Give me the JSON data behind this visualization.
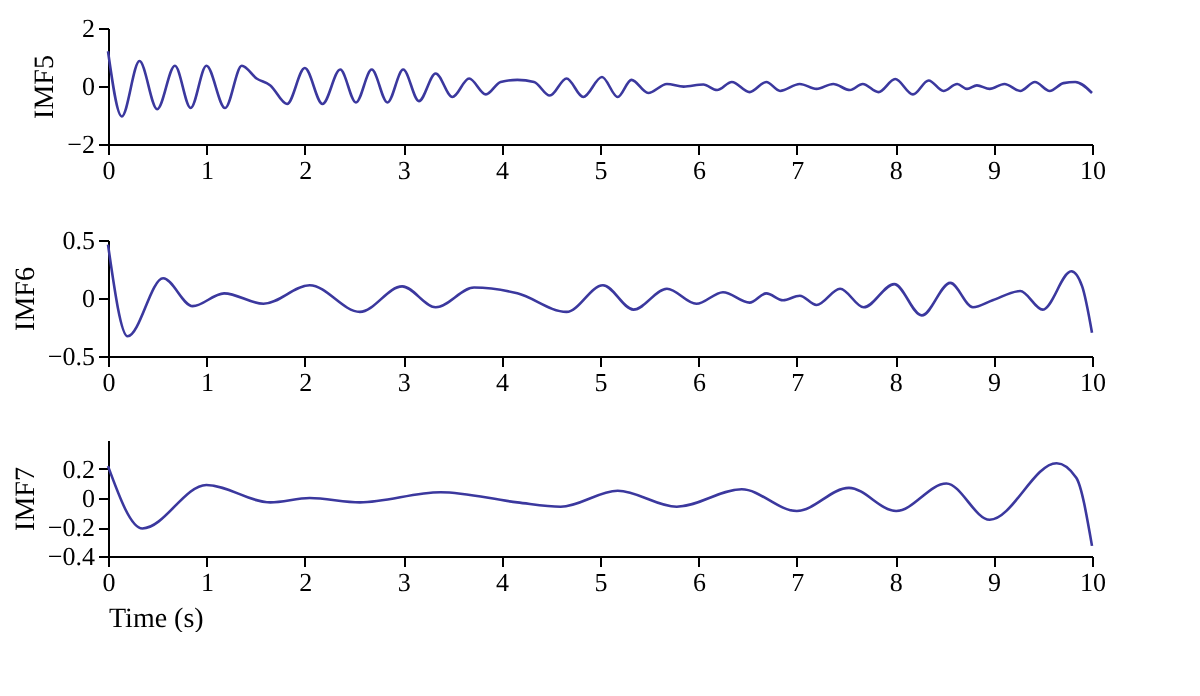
{
  "chart_data": [
    {
      "type": "line",
      "ylabel": "IMF5",
      "xlim": [
        0,
        10
      ],
      "xticks": [
        0,
        1,
        2,
        3,
        4,
        5,
        6,
        7,
        8,
        9,
        10
      ],
      "ylim": [
        -2,
        2
      ],
      "yticks": [
        -2,
        0,
        2
      ],
      "grid": false,
      "x": [
        0,
        0.14,
        0.32,
        0.5,
        0.68,
        0.84,
        1.0,
        1.19,
        1.36,
        1.51,
        1.65,
        1.82,
        2.0,
        2.18,
        2.36,
        2.52,
        2.68,
        2.84,
        3.0,
        3.16,
        3.33,
        3.5,
        3.67,
        3.84,
        3.99,
        4.16,
        4.33,
        4.49,
        4.66,
        4.83,
        5.02,
        5.18,
        5.32,
        5.49,
        5.68,
        5.85,
        6.05,
        6.19,
        6.34,
        6.52,
        6.69,
        6.83,
        7.03,
        7.2,
        7.37,
        7.54,
        7.67,
        7.83,
        8.0,
        8.18,
        8.34,
        8.49,
        8.63,
        8.73,
        8.83,
        8.96,
        9.11,
        9.27,
        9.42,
        9.57,
        9.71,
        9.83,
        10.0
      ],
      "series": [
        {
          "color": "#3b389e",
          "values": [
            1.2,
            -1.05,
            0.86,
            -0.8,
            0.7,
            -0.76,
            0.7,
            -0.76,
            0.7,
            0.26,
            0.02,
            -0.62,
            0.62,
            -0.62,
            0.57,
            -0.57,
            0.57,
            -0.57,
            0.57,
            -0.52,
            0.43,
            -0.38,
            0.26,
            -0.29,
            0.14,
            0.21,
            0.14,
            -0.33,
            0.26,
            -0.38,
            0.31,
            -0.38,
            0.21,
            -0.24,
            0.07,
            -0.02,
            0.05,
            -0.14,
            0.14,
            -0.21,
            0.14,
            -0.17,
            0.07,
            -0.1,
            0.07,
            -0.14,
            0.07,
            -0.21,
            0.24,
            -0.29,
            0.19,
            -0.17,
            0.07,
            -0.1,
            0.02,
            -0.1,
            0.07,
            -0.17,
            0.14,
            -0.17,
            0.1,
            0.14,
            -0.24
          ]
        }
      ]
    },
    {
      "type": "line",
      "ylabel": "IMF6",
      "xlim": [
        0,
        10
      ],
      "xticks": [
        0,
        1,
        2,
        3,
        4,
        5,
        6,
        7,
        8,
        9,
        10
      ],
      "ylim": [
        -0.5,
        0.5
      ],
      "yticks": [
        -0.5,
        0,
        0.5
      ],
      "grid": false,
      "x": [
        0,
        0.2,
        0.56,
        0.86,
        1.18,
        1.58,
        2.05,
        2.56,
        2.99,
        3.33,
        3.72,
        4.16,
        4.66,
        5.03,
        5.34,
        5.68,
        5.98,
        6.25,
        6.52,
        6.69,
        6.86,
        7.03,
        7.2,
        7.44,
        7.68,
        7.99,
        8.27,
        8.56,
        8.79,
        8.99,
        9.27,
        9.5,
        9.79,
        9.9,
        10.0
      ],
      "series": [
        {
          "color": "#3b389e",
          "values": [
            0.46,
            -0.33,
            0.17,
            -0.07,
            0.04,
            -0.05,
            0.11,
            -0.12,
            0.1,
            -0.08,
            0.09,
            0.04,
            -0.12,
            0.11,
            -0.1,
            0.08,
            -0.05,
            0.05,
            -0.04,
            0.04,
            -0.02,
            0.02,
            -0.06,
            0.08,
            -0.08,
            0.12,
            -0.15,
            0.13,
            -0.08,
            -0.02,
            0.06,
            -0.1,
            0.23,
            0.1,
            -0.3
          ]
        }
      ]
    },
    {
      "type": "line",
      "ylabel": "IMF7",
      "xlabel": "Time (s)",
      "xlim": [
        0,
        10
      ],
      "xticks": [
        0,
        1,
        2,
        3,
        4,
        5,
        6,
        7,
        8,
        9,
        10
      ],
      "ylim": [
        -0.4,
        0.4
      ],
      "yticks": [
        -0.4,
        -0.2,
        0,
        0.2
      ],
      "grid": false,
      "x": [
        0,
        0.35,
        1.0,
        1.65,
        2.05,
        2.56,
        3.38,
        4.16,
        4.6,
        5.18,
        5.78,
        6.44,
        7.0,
        7.53,
        8.01,
        8.52,
        8.96,
        9.64,
        9.84,
        10.0
      ],
      "series": [
        {
          "color": "#3b389e",
          "values": [
            0.22,
            -0.21,
            0.09,
            -0.03,
            0.0,
            -0.03,
            0.04,
            -0.03,
            -0.06,
            0.05,
            -0.06,
            0.06,
            -0.09,
            0.07,
            -0.09,
            0.1,
            -0.15,
            0.24,
            0.14,
            -0.33
          ]
        }
      ]
    }
  ]
}
